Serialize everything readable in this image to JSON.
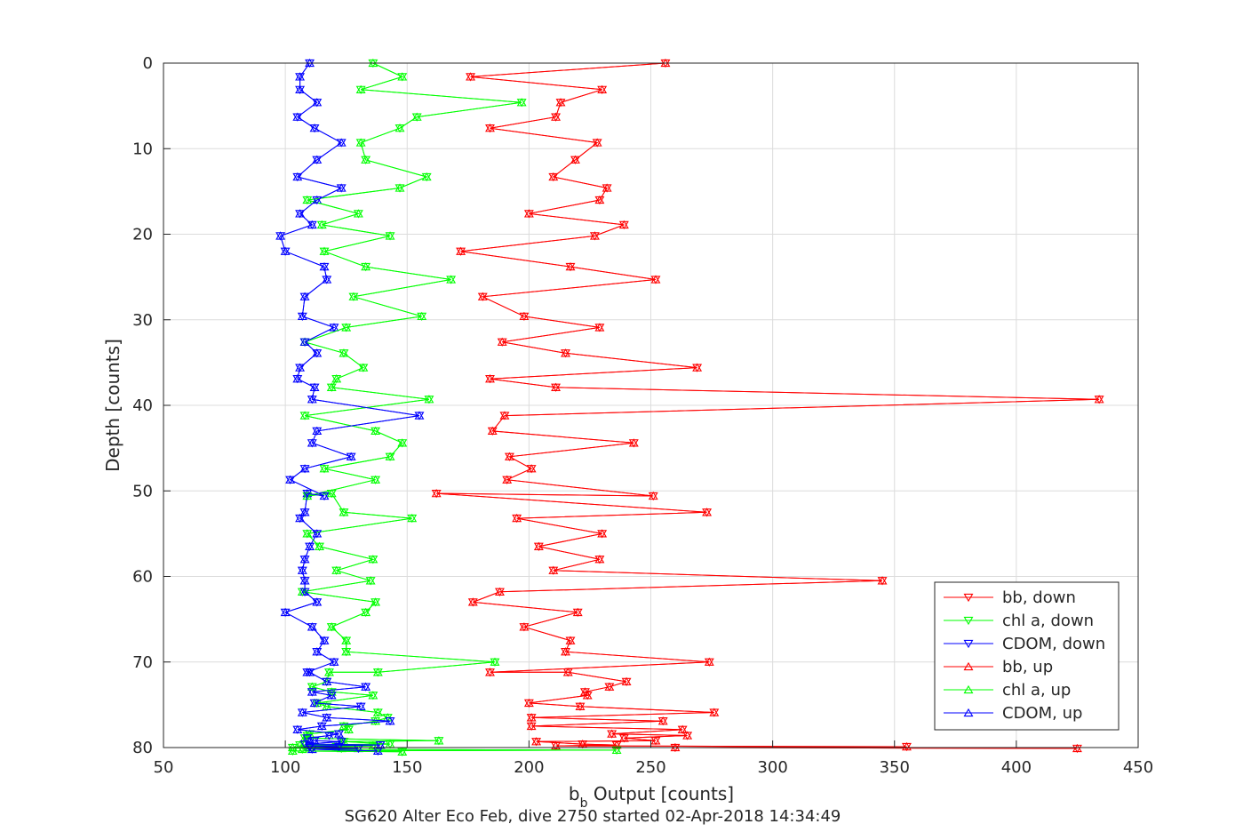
{
  "chart_data": {
    "type": "line",
    "xlabel_main": "b",
    "xlabel_sub": "b",
    "xlabel_rest": " Output [counts]",
    "ylabel": "Depth [counts]",
    "caption": "SG620 Alter Eco Feb, dive 2750 started 02-Apr-2018 14:34:49",
    "xlim": [
      50,
      450
    ],
    "ylim": [
      0,
      80
    ],
    "y_reversed": true,
    "grid": true,
    "legend_position": "bottom-right",
    "xticks": [
      "50",
      "100",
      "150",
      "200",
      "250",
      "300",
      "350",
      "400",
      "450"
    ],
    "yticks": [
      "0",
      "10",
      "20",
      "30",
      "40",
      "50",
      "60",
      "70",
      "80"
    ],
    "series": [
      {
        "name": "bb, down",
        "color": "#ff0000",
        "marker": "down",
        "x": [
          256,
          176,
          230,
          213,
          211,
          184,
          228,
          219,
          210,
          232,
          229,
          200,
          239,
          227,
          172,
          217,
          252,
          181,
          198,
          229,
          189,
          215,
          269,
          184,
          211,
          434,
          190,
          185,
          243,
          192,
          201,
          191,
          251,
          162,
          273,
          195,
          230,
          204,
          229,
          210,
          345,
          188,
          177,
          220,
          198,
          217,
          215,
          274,
          184,
          216,
          240,
          233,
          223,
          224,
          200,
          221,
          276,
          201,
          255,
          201,
          263,
          234,
          265,
          239,
          252,
          203,
          222,
          236,
          211,
          355,
          260,
          425
        ],
        "y": [
          0,
          1.6,
          3.1,
          4.6,
          6.3,
          7.6,
          9.3,
          11.3,
          13.3,
          14.6,
          16.0,
          17.6,
          18.9,
          20.2,
          22.0,
          23.8,
          25.3,
          27.3,
          29.6,
          30.9,
          32.6,
          33.9,
          35.6,
          36.9,
          37.9,
          39.3,
          41.2,
          43.0,
          44.4,
          46.0,
          47.4,
          48.7,
          50.6,
          50.3,
          52.5,
          53.2,
          55.0,
          56.5,
          58.0,
          59.3,
          60.5,
          61.8,
          63.0,
          64.2,
          65.9,
          67.5,
          68.8,
          70.0,
          71.2,
          71.2,
          72.3,
          72.9,
          73.5,
          73.9,
          74.8,
          75.2,
          75.9,
          76.5,
          76.9,
          77.5,
          77.9,
          78.4,
          78.6,
          78.9,
          79.2,
          79.3,
          79.6,
          79.7,
          79.8,
          79.9,
          80.0,
          80.1
        ]
      },
      {
        "name": "chl a, down",
        "color": "#00ff00",
        "marker": "down",
        "x": [
          136,
          148,
          131,
          197,
          154,
          147,
          131,
          133,
          158,
          147,
          109,
          130,
          115,
          143,
          116,
          133,
          168,
          128,
          156,
          125,
          108,
          124,
          132,
          121,
          119,
          159,
          108,
          137,
          148,
          143,
          116,
          137,
          109,
          119,
          124,
          152,
          109,
          114,
          136,
          121,
          135,
          107,
          137,
          133,
          119,
          125,
          125,
          186,
          138,
          118,
          117,
          111,
          119,
          136,
          113,
          117,
          138,
          142,
          137,
          124,
          126,
          110,
          109,
          108,
          163,
          124,
          143,
          106,
          136,
          121,
          103,
          123,
          107,
          236,
          103,
          148
        ],
        "y": [
          0,
          1.6,
          3.1,
          4.6,
          6.3,
          7.6,
          9.3,
          11.3,
          13.3,
          14.6,
          16.0,
          17.6,
          18.9,
          20.2,
          22.0,
          23.8,
          25.3,
          27.3,
          29.6,
          30.9,
          32.6,
          33.9,
          35.6,
          36.9,
          37.9,
          39.3,
          41.2,
          43.0,
          44.4,
          46.0,
          47.4,
          48.7,
          50.6,
          50.3,
          52.5,
          53.2,
          55.0,
          56.5,
          58.0,
          59.3,
          60.5,
          61.8,
          63.0,
          64.2,
          65.9,
          67.5,
          68.8,
          70.0,
          71.2,
          71.2,
          72.3,
          72.9,
          73.5,
          73.9,
          74.8,
          75.2,
          75.9,
          76.5,
          76.9,
          77.5,
          77.9,
          78.4,
          78.6,
          78.9,
          79.2,
          79.3,
          79.6,
          79.7,
          79.8,
          79.9,
          80.0,
          80.1,
          80.2,
          80.3,
          80.4,
          80.5
        ]
      },
      {
        "name": "CDOM, down",
        "color": "#0000ff",
        "marker": "down",
        "x": [
          110,
          106,
          106,
          113,
          105,
          112,
          123,
          113,
          105,
          123,
          113,
          106,
          111,
          98,
          100,
          116,
          117,
          108,
          107,
          120,
          108,
          113,
          106,
          105,
          112,
          111,
          155,
          113,
          111,
          127,
          108,
          102,
          116,
          109,
          108,
          106,
          113,
          110,
          108,
          107,
          108,
          108,
          113,
          100,
          111,
          116,
          113,
          120,
          109,
          110,
          117,
          133,
          111,
          119,
          112,
          131,
          107,
          117,
          143,
          115,
          105,
          122,
          118,
          109,
          112,
          123,
          108,
          139,
          110,
          122,
          110,
          130,
          111,
          138
        ],
        "y": [
          0,
          1.6,
          3.1,
          4.6,
          6.3,
          7.6,
          9.3,
          11.3,
          13.3,
          14.6,
          16.0,
          17.6,
          18.9,
          20.2,
          22.0,
          23.8,
          25.3,
          27.3,
          29.6,
          30.9,
          32.6,
          33.9,
          35.6,
          36.9,
          37.9,
          39.3,
          41.2,
          43.0,
          44.4,
          46.0,
          47.4,
          48.7,
          50.6,
          50.3,
          52.5,
          53.2,
          55.0,
          56.5,
          58.0,
          59.3,
          60.5,
          61.8,
          63.0,
          64.2,
          65.9,
          67.5,
          68.8,
          70.0,
          71.2,
          71.2,
          72.3,
          72.9,
          73.5,
          73.9,
          74.8,
          75.2,
          75.9,
          76.5,
          76.9,
          77.5,
          77.9,
          78.4,
          78.6,
          78.9,
          79.2,
          79.3,
          79.6,
          79.7,
          79.8,
          79.9,
          80.0,
          80.1,
          80.2,
          80.4
        ]
      },
      {
        "name": "bb, up",
        "color": "#ff0000",
        "marker": "up",
        "x": [
          256,
          176,
          230,
          213,
          211,
          184,
          228,
          219,
          210,
          232,
          229,
          200,
          239,
          227,
          172,
          217,
          252,
          181,
          198,
          229,
          189,
          215,
          269,
          184,
          211,
          434,
          190,
          185,
          243,
          192,
          201,
          191,
          251,
          162,
          273,
          195,
          230,
          204,
          229,
          210,
          345,
          188,
          177,
          220,
          198,
          217,
          215,
          274,
          184,
          216,
          240,
          233,
          223,
          224,
          200,
          221,
          276,
          201,
          255,
          201,
          263,
          234,
          265,
          239,
          252,
          203,
          222,
          236,
          211,
          355,
          260,
          425
        ],
        "y": [
          0,
          1.6,
          3.1,
          4.6,
          6.3,
          7.6,
          9.3,
          11.3,
          13.3,
          14.6,
          16.0,
          17.6,
          18.9,
          20.2,
          22.0,
          23.8,
          25.3,
          27.3,
          29.6,
          30.9,
          32.6,
          33.9,
          35.6,
          36.9,
          37.9,
          39.3,
          41.2,
          43.0,
          44.4,
          46.0,
          47.4,
          48.7,
          50.6,
          50.3,
          52.5,
          53.2,
          55.0,
          56.5,
          58.0,
          59.3,
          60.5,
          61.8,
          63.0,
          64.2,
          65.9,
          67.5,
          68.8,
          70.0,
          71.2,
          71.2,
          72.3,
          72.9,
          73.5,
          73.9,
          74.8,
          75.2,
          75.9,
          76.5,
          76.9,
          77.5,
          77.9,
          78.4,
          78.6,
          78.9,
          79.2,
          79.3,
          79.6,
          79.7,
          79.8,
          79.9,
          80.0,
          80.1
        ]
      },
      {
        "name": "chl a, up",
        "color": "#00ff00",
        "marker": "up",
        "x": [
          136,
          148,
          131,
          197,
          154,
          147,
          131,
          133,
          158,
          147,
          109,
          130,
          115,
          143,
          116,
          133,
          168,
          128,
          156,
          125,
          108,
          124,
          132,
          121,
          119,
          159,
          108,
          137,
          148,
          143,
          116,
          137,
          109,
          119,
          124,
          152,
          109,
          114,
          136,
          121,
          135,
          107,
          137,
          133,
          119,
          125,
          125,
          186,
          138,
          118,
          117,
          111,
          119,
          136,
          113,
          117,
          138,
          142,
          137,
          124,
          126,
          110,
          109,
          108,
          163,
          124,
          143,
          106,
          136,
          121,
          103,
          123,
          107,
          236,
          103,
          148
        ],
        "y": [
          0,
          1.6,
          3.1,
          4.6,
          6.3,
          7.6,
          9.3,
          11.3,
          13.3,
          14.6,
          16.0,
          17.6,
          18.9,
          20.2,
          22.0,
          23.8,
          25.3,
          27.3,
          29.6,
          30.9,
          32.6,
          33.9,
          35.6,
          36.9,
          37.9,
          39.3,
          41.2,
          43.0,
          44.4,
          46.0,
          47.4,
          48.7,
          50.6,
          50.3,
          52.5,
          53.2,
          55.0,
          56.5,
          58.0,
          59.3,
          60.5,
          61.8,
          63.0,
          64.2,
          65.9,
          67.5,
          68.8,
          70.0,
          71.2,
          71.2,
          72.3,
          72.9,
          73.5,
          73.9,
          74.8,
          75.2,
          75.9,
          76.5,
          76.9,
          77.5,
          77.9,
          78.4,
          78.6,
          78.9,
          79.2,
          79.3,
          79.6,
          79.7,
          79.8,
          79.9,
          80.0,
          80.1,
          80.2,
          80.3,
          80.4,
          80.5
        ]
      },
      {
        "name": "CDOM, up",
        "color": "#0000ff",
        "marker": "up",
        "x": [
          110,
          106,
          106,
          113,
          105,
          112,
          123,
          113,
          105,
          123,
          113,
          106,
          111,
          98,
          100,
          116,
          117,
          108,
          107,
          120,
          108,
          113,
          106,
          105,
          112,
          111,
          155,
          113,
          111,
          127,
          108,
          102,
          116,
          109,
          108,
          106,
          113,
          110,
          108,
          107,
          108,
          108,
          113,
          100,
          111,
          116,
          113,
          120,
          109,
          110,
          117,
          133,
          111,
          119,
          112,
          131,
          107,
          117,
          143,
          115,
          105,
          122,
          118,
          109,
          112,
          123,
          108,
          139,
          110,
          122,
          110,
          130,
          111,
          138
        ],
        "y": [
          0,
          1.6,
          3.1,
          4.6,
          6.3,
          7.6,
          9.3,
          11.3,
          13.3,
          14.6,
          16.0,
          17.6,
          18.9,
          20.2,
          22.0,
          23.8,
          25.3,
          27.3,
          29.6,
          30.9,
          32.6,
          33.9,
          35.6,
          36.9,
          37.9,
          39.3,
          41.2,
          43.0,
          44.4,
          46.0,
          47.4,
          48.7,
          50.6,
          50.3,
          52.5,
          53.2,
          55.0,
          56.5,
          58.0,
          59.3,
          60.5,
          61.8,
          63.0,
          64.2,
          65.9,
          67.5,
          68.8,
          70.0,
          71.2,
          71.2,
          72.3,
          72.9,
          73.5,
          73.9,
          74.8,
          75.2,
          75.9,
          76.5,
          76.9,
          77.5,
          77.9,
          78.4,
          78.6,
          78.9,
          79.2,
          79.3,
          79.6,
          79.7,
          79.8,
          79.9,
          80.0,
          80.1,
          80.2,
          80.4
        ]
      }
    ]
  }
}
